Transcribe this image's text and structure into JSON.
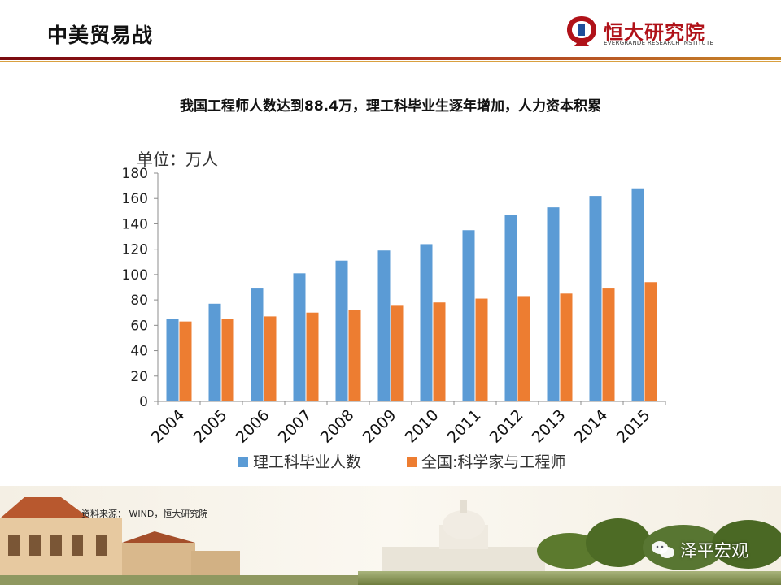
{
  "slide": {
    "title": "中美贸易战",
    "subtitle": "我国工程师人数达到88.4万，理工科毕业生逐年增加，人力资本积累",
    "source": "资料来源： WIND，恒大研究院"
  },
  "logo": {
    "name": "恒大研究院",
    "english": "EVERGRANDE RESEARCH INSTITUTE",
    "color": "#b01219"
  },
  "watermark": {
    "text": "泽平宏观"
  },
  "chart_data": {
    "type": "bar",
    "unit_label": "单位：万人",
    "categories": [
      "2004",
      "2005",
      "2006",
      "2007",
      "2008",
      "2009",
      "2010",
      "2011",
      "2012",
      "2013",
      "2014",
      "2015"
    ],
    "series": [
      {
        "name": "理工科毕业人数",
        "color": "#5b9bd5",
        "values": [
          65,
          77,
          89,
          101,
          111,
          119,
          124,
          135,
          147,
          153,
          162,
          168
        ]
      },
      {
        "name": "全国:科学家与工程师",
        "color": "#ed7d31",
        "values": [
          63,
          65,
          67,
          70,
          72,
          76,
          78,
          81,
          83,
          85,
          89,
          94
        ]
      }
    ],
    "ylim": [
      0,
      180
    ],
    "yticks": [
      0,
      20,
      40,
      60,
      80,
      100,
      120,
      140,
      160,
      180
    ],
    "legend": "bottom",
    "grid": false
  }
}
